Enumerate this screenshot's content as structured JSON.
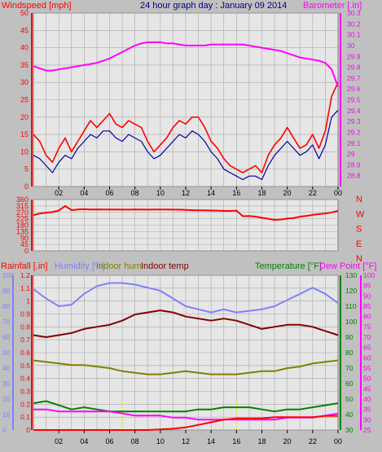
{
  "colors": {
    "bg": "#c0c0c0",
    "plot_bg": "#e6e6e6",
    "grid": "#a8a8a8",
    "wind_speed": "#ff0000",
    "wind_avg": "#0000a0",
    "barometer": "#ff00ff",
    "wind_dir": "#ff0000",
    "rain": "#ff0000",
    "humidity": "#8080ff",
    "indoor_hum": "#808000",
    "indoor_temp": "#800000",
    "temperature": "#008000",
    "dew_point": "#ff00ff",
    "highlight": "#ffff00",
    "title": "#000080"
  },
  "header": {
    "left": "Windspeed [mph]",
    "center": "24 hour graph day : January 09 2014",
    "right": "Barometer [.in]"
  },
  "bottom_labels": {
    "rain": "Rainfall [.in]",
    "humidity": "Humidity [%]",
    "indoor_hum": "Indoor hum",
    "indoor_temp": "Indoor temp",
    "temperature": "Temperature [°F]",
    "dew_point": "Dew Point [°F]"
  },
  "time_ticks": [
    "02",
    "04",
    "06",
    "08",
    "10",
    "12",
    "14",
    "16",
    "18",
    "20",
    "22",
    "00"
  ],
  "chart_data": [
    {
      "type": "line",
      "title": "24 hour graph day : January 09 2014",
      "ylabel_left": "Windspeed [mph]",
      "ylabel_right": "Barometer [.in]",
      "ylim_left": [
        0,
        50
      ],
      "ylim_right": [
        28.7,
        30.3
      ],
      "left_ticks": [
        "0",
        "5",
        "10",
        "15",
        "20",
        "25",
        "30",
        "35",
        "40",
        "45",
        "50"
      ],
      "right_ticks": [
        "28.8",
        "28.9",
        "29",
        "29.1",
        "29.2",
        "29.3",
        "29.4",
        "29.5",
        "29.6",
        "29.7",
        "29.8",
        "29.9",
        "30",
        "30.1",
        "30.2",
        "30.3"
      ],
      "x_hours": [
        0,
        0.5,
        1,
        1.5,
        2,
        2.5,
        3,
        3.5,
        4,
        4.5,
        5,
        5.5,
        6,
        6.5,
        7,
        7.5,
        8,
        8.5,
        9,
        9.5,
        10,
        10.5,
        11,
        11.5,
        12,
        12.5,
        13,
        13.5,
        14,
        14.5,
        15,
        15.5,
        16,
        16.5,
        17,
        17.5,
        18,
        18.5,
        19,
        19.5,
        20,
        20.5,
        21,
        21.5,
        22,
        22.5,
        23,
        23.5,
        24
      ],
      "series": [
        {
          "name": "Windspeed",
          "values": [
            15,
            13,
            9,
            7,
            11,
            14,
            10,
            13,
            16,
            19,
            17,
            19,
            21,
            18,
            17,
            19,
            18,
            17,
            13,
            10,
            12,
            14,
            17,
            19,
            18,
            20,
            20,
            17,
            13,
            11,
            8,
            6,
            5,
            4,
            5,
            6,
            4,
            9,
            12,
            14,
            17,
            14,
            11,
            12,
            15,
            11,
            16,
            26,
            30
          ]
        },
        {
          "name": "Average",
          "values": [
            9,
            8,
            6,
            4,
            7,
            9,
            8,
            11,
            13,
            15,
            14,
            16,
            16,
            14,
            13,
            15,
            14,
            13,
            10,
            8,
            9,
            11,
            13,
            15,
            14,
            16,
            15,
            13,
            10,
            8,
            5,
            4,
            3,
            2,
            3,
            3,
            2,
            6,
            9,
            11,
            13,
            11,
            9,
            10,
            12,
            8,
            12,
            20,
            22
          ]
        },
        {
          "name": "Barometer",
          "values": [
            29.81,
            29.79,
            29.77,
            29.77,
            29.78,
            29.79,
            29.8,
            29.81,
            29.82,
            29.83,
            29.84,
            29.86,
            29.88,
            29.91,
            29.94,
            29.97,
            30.0,
            30.02,
            30.03,
            30.03,
            30.03,
            30.02,
            30.02,
            30.01,
            30.0,
            30.0,
            30.0,
            30.0,
            30.01,
            30.01,
            30.01,
            30.01,
            30.01,
            30.01,
            30.0,
            29.99,
            29.98,
            29.97,
            29.96,
            29.95,
            29.93,
            29.91,
            29.89,
            29.88,
            29.87,
            29.86,
            29.84,
            29.78,
            29.62
          ]
        }
      ]
    },
    {
      "type": "line",
      "title": "",
      "ylim": [
        0,
        360
      ],
      "left_ticks": [
        "0",
        "45",
        "90",
        "135",
        "180",
        "225",
        "270",
        "315",
        "360"
      ],
      "right_labels": [
        "N",
        "W",
        "S",
        "E",
        "N"
      ],
      "x_hours": [
        0,
        0.5,
        1,
        1.5,
        2,
        2.5,
        3,
        3.5,
        4,
        4.5,
        5,
        5.5,
        6,
        6.5,
        7,
        7.5,
        8,
        8.5,
        9,
        9.5,
        10,
        10.5,
        11,
        11.5,
        12,
        12.5,
        13,
        13.5,
        14,
        14.5,
        15,
        15.5,
        16,
        16.5,
        17,
        17.5,
        18,
        18.5,
        19,
        19.5,
        20,
        20.5,
        21,
        21.5,
        22,
        22.5,
        23,
        23.5,
        24
      ],
      "series": [
        {
          "name": "Wind direction",
          "values": [
            250,
            262,
            268,
            272,
            282,
            315,
            285,
            290,
            292,
            290,
            291,
            290,
            290,
            290,
            289,
            289,
            290,
            290,
            289,
            290,
            290,
            290,
            289,
            289,
            287,
            285,
            284,
            284,
            283,
            282,
            280,
            280,
            282,
            243,
            244,
            240,
            232,
            225,
            217,
            220,
            226,
            230,
            240,
            245,
            252,
            258,
            262,
            270,
            280
          ]
        }
      ]
    },
    {
      "type": "line",
      "title": "",
      "ylabel_left": "Rainfall [.in]",
      "ylabel_right": "Temperature [°F]",
      "ylim_rain": [
        0,
        1.2
      ],
      "ylim_humidity": [
        0,
        100
      ],
      "ylim_temp_outer": [
        30,
        130
      ],
      "ylim_temp_inner": [
        25,
        100
      ],
      "rain_ticks": [
        "0",
        "0.1",
        "0.2",
        "0.3",
        "0.4",
        "0.5",
        "0.6",
        "0.7",
        "0.8",
        "0.9",
        "1",
        "1.1",
        "1.2"
      ],
      "humidity_ticks": [
        "0",
        "10",
        "20",
        "30",
        "40",
        "50",
        "60",
        "70",
        "80",
        "90",
        "100"
      ],
      "temp_outer_ticks": [
        "30",
        "40",
        "50",
        "60",
        "70",
        "80",
        "90",
        "100",
        "110",
        "120",
        "130"
      ],
      "temp_inner_ticks": [
        "25",
        "30",
        "35",
        "40",
        "45",
        "50",
        "55",
        "60",
        "65",
        "70",
        "75",
        "80",
        "85",
        "90",
        "95",
        "100"
      ],
      "x_hours": [
        0,
        1,
        2,
        3,
        4,
        5,
        6,
        7,
        8,
        9,
        10,
        11,
        12,
        13,
        14,
        15,
        16,
        17,
        18,
        19,
        20,
        21,
        22,
        23,
        24
      ],
      "series": [
        {
          "name": "Humidity",
          "values": [
            91,
            85,
            80,
            81,
            88,
            93,
            95,
            95,
            94,
            92,
            90,
            85,
            80,
            78,
            76,
            78,
            76,
            77,
            78,
            80,
            84,
            88,
            92,
            88,
            82
          ]
        },
        {
          "name": "Indoor hum",
          "values": [
            45,
            44,
            43,
            42,
            42,
            41,
            40,
            38,
            37,
            36,
            36,
            37,
            38,
            37,
            36,
            36,
            36,
            37,
            38,
            38,
            40,
            41,
            43,
            44,
            45
          ]
        },
        {
          "name": "Indoor temp",
          "values": [
            71,
            70,
            71,
            72,
            74,
            75,
            76,
            78,
            81,
            82,
            83,
            82,
            80,
            79,
            78,
            79,
            78,
            76,
            74,
            75,
            76,
            76,
            75,
            73,
            71
          ]
        },
        {
          "name": "Temperature",
          "values": [
            38,
            39,
            37,
            35,
            36,
            35,
            34,
            34,
            34,
            34,
            34,
            34,
            34,
            35,
            35,
            36,
            36,
            36,
            35,
            34,
            35,
            35,
            36,
            37,
            38
          ]
        },
        {
          "name": "Dew Point",
          "values": [
            35,
            35,
            34,
            34,
            34,
            34,
            34,
            33,
            32,
            32,
            32,
            31,
            31,
            30,
            30,
            30,
            30,
            30,
            30,
            30,
            31,
            31,
            31,
            32,
            33
          ]
        },
        {
          "name": "Rainfall",
          "values": [
            0,
            0,
            0,
            0,
            0,
            0,
            0,
            0,
            0,
            0,
            0.005,
            0.01,
            0.02,
            0.04,
            0.06,
            0.08,
            0.09,
            0.09,
            0.09,
            0.1,
            0.1,
            0.1,
            0.1,
            0.11,
            0.11
          ]
        }
      ]
    }
  ]
}
